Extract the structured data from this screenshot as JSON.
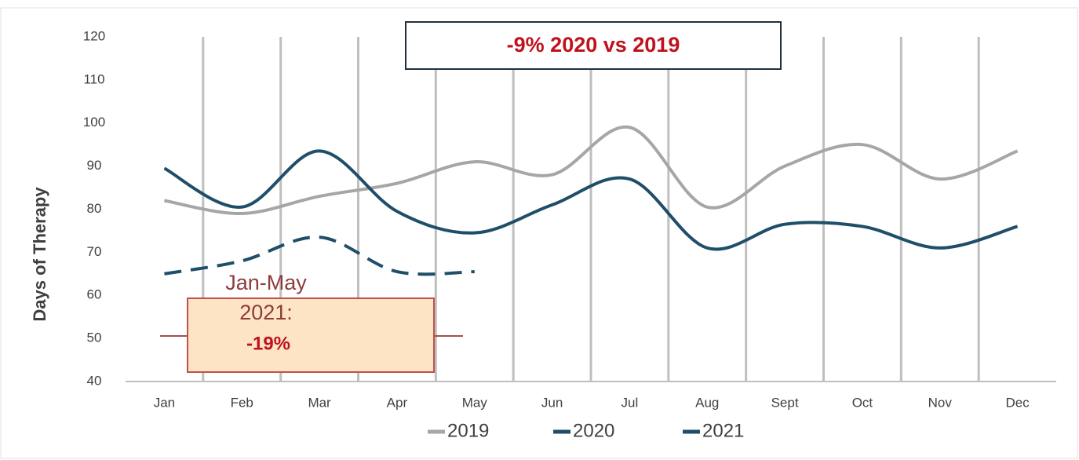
{
  "chart_data": {
    "type": "line",
    "y_label": "Days of Therapy",
    "categories": [
      "Jan",
      "Feb",
      "Mar",
      "Apr",
      "May",
      "Jun",
      "Jul",
      "Aug",
      "Sept",
      "Oct",
      "Nov",
      "Dec"
    ],
    "series": [
      {
        "name": "2019",
        "color": "#a6a6a6",
        "dashed": false,
        "values": [
          82,
          79,
          83,
          86,
          91,
          88,
          99,
          80.5,
          90,
          95,
          87,
          93.5
        ]
      },
      {
        "name": "2020",
        "color": "#1f4e69",
        "dashed": false,
        "values": [
          89.5,
          80.5,
          93.5,
          79.5,
          74.5,
          81,
          87,
          71,
          76.5,
          76,
          71,
          76
        ]
      },
      {
        "name": "2021",
        "color": "#1f4e69",
        "dashed": true,
        "values": [
          65,
          68,
          73.5,
          65.5,
          65.5,
          null,
          null,
          null,
          null,
          null,
          null,
          null
        ]
      }
    ],
    "ylim": [
      40,
      120
    ],
    "yticks": [
      40,
      50,
      60,
      70,
      80,
      90,
      100,
      110,
      120
    ],
    "grid": true,
    "annotation_top": "-9% 2020 vs 2019",
    "annotation_box": [
      "Jan-May",
      "2021:",
      "-19%"
    ]
  }
}
